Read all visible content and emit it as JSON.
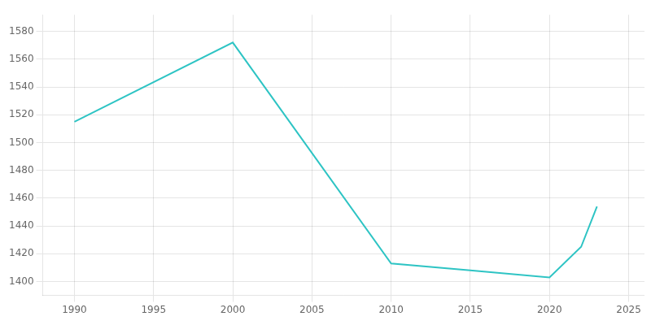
{
  "chart_data": {
    "type": "line",
    "x": [
      1990,
      2000,
      2010,
      2015,
      2020,
      2022,
      2023
    ],
    "values": [
      1515,
      1572,
      1413,
      1408,
      1403,
      1425,
      1454
    ],
    "color": "#2EC4C4",
    "xlim": [
      1988,
      2026
    ],
    "ylim": [
      1390,
      1592
    ],
    "xticks": [
      1990,
      1995,
      2000,
      2005,
      2010,
      2015,
      2020,
      2025
    ],
    "yticks": [
      1400,
      1420,
      1440,
      1460,
      1480,
      1500,
      1520,
      1540,
      1560,
      1580
    ],
    "grid": true
  }
}
